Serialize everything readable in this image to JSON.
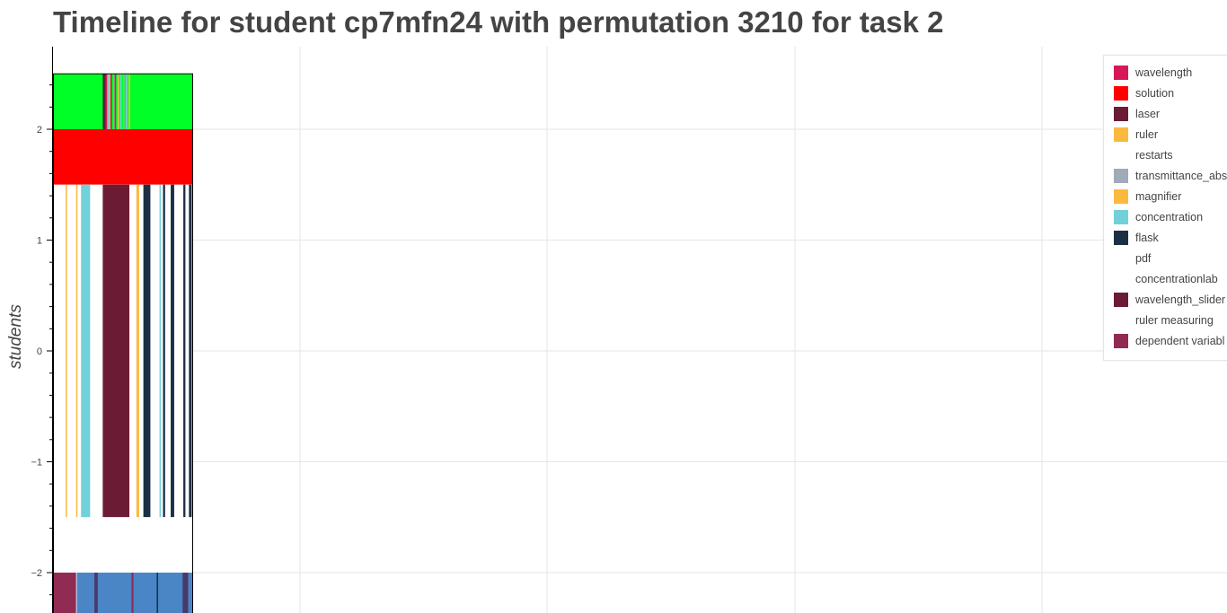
{
  "chart_data": {
    "type": "timeline",
    "title": "Timeline for student cp7mfn24 with permutation 3210 for task 2",
    "ylabel": "students",
    "y_ticks": [
      "2",
      "1",
      "0",
      "−1",
      "−2"
    ],
    "grid": true,
    "legend_position": "top-right",
    "legend": [
      {
        "name": "wavelength",
        "color": "#D6185A"
      },
      {
        "name": "solution",
        "color": "#FF0000"
      },
      {
        "name": "laser",
        "color": "#6B1C34"
      },
      {
        "name": "ruler",
        "color": "#FBB940"
      },
      {
        "name": "restarts",
        "color": "#FFFFFF"
      },
      {
        "name": "transmittance_abs",
        "color": "#A0AAB8"
      },
      {
        "name": "magnifier",
        "color": "#FBB940"
      },
      {
        "name": "concentration",
        "color": "#72D0DA"
      },
      {
        "name": "flask",
        "color": "#1C2F44"
      },
      {
        "name": "pdf",
        "color": "#FFFFFF"
      },
      {
        "name": "concentrationlab",
        "color": "#FFFFFF"
      },
      {
        "name": "wavelength_slider",
        "color": "#6B1C34"
      },
      {
        "name": "ruler measuring",
        "color": "#FFFFFF"
      },
      {
        "name": "dependent variabl",
        "color": "#922B54"
      }
    ],
    "lanes": [
      {
        "y_min": 2.0,
        "y_max": 2.5,
        "base_color": "#00FF26",
        "segments": [
          {
            "t0": 0.0,
            "t1": 0.355,
            "color": "#00FF26"
          },
          {
            "t0": 0.355,
            "t1": 0.365,
            "color": "#1C2F44"
          },
          {
            "t0": 0.365,
            "t1": 0.375,
            "color": "#6B1C34"
          },
          {
            "t0": 0.375,
            "t1": 0.385,
            "color": "#D6185A"
          },
          {
            "t0": 0.39,
            "t1": 0.4,
            "color": "#72D0DA"
          },
          {
            "t0": 0.4,
            "t1": 0.41,
            "color": "#FBB940"
          },
          {
            "t0": 0.41,
            "t1": 0.42,
            "color": "#922B54"
          },
          {
            "t0": 0.43,
            "t1": 0.44,
            "color": "#A0AAB8"
          },
          {
            "t0": 0.44,
            "t1": 0.45,
            "color": "#D6185A"
          },
          {
            "t0": 0.46,
            "t1": 0.47,
            "color": "#FBB940"
          },
          {
            "t0": 0.48,
            "t1": 0.49,
            "color": "#72D0DA"
          },
          {
            "t0": 0.5,
            "t1": 0.51,
            "color": "#A0AAB8"
          },
          {
            "t0": 0.52,
            "t1": 0.53,
            "color": "#72D0DA"
          },
          {
            "t0": 0.54,
            "t1": 0.55,
            "color": "#FBB940"
          }
        ]
      },
      {
        "y_min": 1.5,
        "y_max": 2.0,
        "base_color": "#FF0000",
        "segments": []
      },
      {
        "y_min": -1.5,
        "y_max": 1.5,
        "base_color": "#FFFFFF",
        "segments": [
          {
            "t0": 0.09,
            "t1": 0.1,
            "color": "#FBB940"
          },
          {
            "t0": 0.165,
            "t1": 0.175,
            "color": "#FBB940"
          },
          {
            "t0": 0.2,
            "t1": 0.265,
            "color": "#72D0DA"
          },
          {
            "t0": 0.355,
            "t1": 0.545,
            "color": "#6B1C34"
          },
          {
            "t0": 0.595,
            "t1": 0.615,
            "color": "#FBB940"
          },
          {
            "t0": 0.645,
            "t1": 0.695,
            "color": "#1C2F44"
          },
          {
            "t0": 0.76,
            "t1": 0.77,
            "color": "#72D0DA"
          },
          {
            "t0": 0.785,
            "t1": 0.8,
            "color": "#1C2F44"
          },
          {
            "t0": 0.84,
            "t1": 0.865,
            "color": "#1C2F44"
          },
          {
            "t0": 0.93,
            "t1": 0.945,
            "color": "#1C2F44"
          },
          {
            "t0": 0.97,
            "t1": 0.99,
            "color": "#1C2F44"
          }
        ]
      },
      {
        "y_min": -2.0,
        "y_max": -1.5,
        "base_color": "#FFFFFF",
        "segments": []
      },
      {
        "y_min": -2.5,
        "y_max": -2.0,
        "base_color": "#4A86C6",
        "segments": [
          {
            "t0": 0.0,
            "t1": 0.165,
            "color": "#922B54"
          },
          {
            "t0": 0.165,
            "t1": 0.17,
            "color": "#FFFFFF"
          },
          {
            "t0": 0.17,
            "t1": 0.295,
            "color": "#4A86C6"
          },
          {
            "t0": 0.295,
            "t1": 0.32,
            "color": "#4A3A6A"
          },
          {
            "t0": 0.32,
            "t1": 0.56,
            "color": "#4A86C6"
          },
          {
            "t0": 0.56,
            "t1": 0.575,
            "color": "#922B54"
          },
          {
            "t0": 0.575,
            "t1": 0.74,
            "color": "#4A86C6"
          },
          {
            "t0": 0.74,
            "t1": 0.75,
            "color": "#1C2F44"
          },
          {
            "t0": 0.75,
            "t1": 0.925,
            "color": "#4A86C6"
          },
          {
            "t0": 0.925,
            "t1": 0.965,
            "color": "#4A3A6A"
          },
          {
            "t0": 0.965,
            "t1": 1.0,
            "color": "#4A86C6"
          }
        ]
      }
    ]
  }
}
